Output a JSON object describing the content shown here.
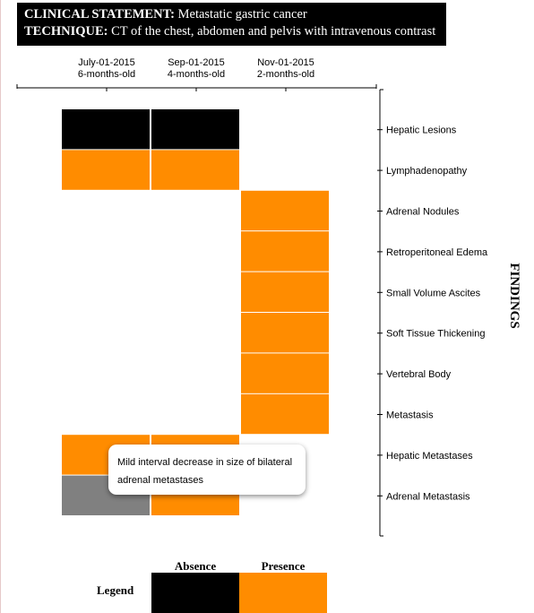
{
  "header": {
    "clinical_label": "CLINICAL STATEMENT:",
    "clinical_value": "Metastatic gastric cancer",
    "technique_label": "TECHNIQUE:",
    "technique_value": "CT of the chest, abdomen and pelvis with intravenous contrast"
  },
  "colors": {
    "absence": "#000000",
    "presence": "#ff8c00",
    "unknown": "#808080"
  },
  "chart_data": {
    "type": "heatmap",
    "x_label": "",
    "y_label": "FINDINGS",
    "columns": [
      {
        "date": "July-01-2015",
        "age": "6-months-old"
      },
      {
        "date": "Sep-01-2015",
        "age": "4-months-old"
      },
      {
        "date": "Nov-01-2015",
        "age": "2-months-old"
      }
    ],
    "rows": [
      "Hepatic Lesions",
      "Lymphadenopathy",
      "Adrenal Nodules",
      "Retroperitoneal Edema",
      "Small Volume Ascites",
      "Soft Tissue Thickening",
      "Vertebral Body",
      "Metastasis",
      "Hepatic Metastases",
      "Adrenal Metastasis"
    ],
    "cells": [
      [
        "absence",
        "absence",
        null
      ],
      [
        "presence",
        "presence",
        null
      ],
      [
        null,
        null,
        "presence"
      ],
      [
        null,
        null,
        "presence"
      ],
      [
        null,
        null,
        "presence"
      ],
      [
        null,
        null,
        "presence"
      ],
      [
        null,
        null,
        "presence"
      ],
      [
        null,
        null,
        "presence"
      ],
      [
        "presence",
        "presence",
        null
      ],
      [
        "unknown",
        "presence",
        null
      ]
    ],
    "tooltip": "Mild interval decrease in size of bilateral adrenal metastases",
    "legend": {
      "title": "Legend",
      "items": [
        {
          "label": "Absence",
          "state": "absence"
        },
        {
          "label": "Presence",
          "state": "presence"
        }
      ]
    }
  }
}
